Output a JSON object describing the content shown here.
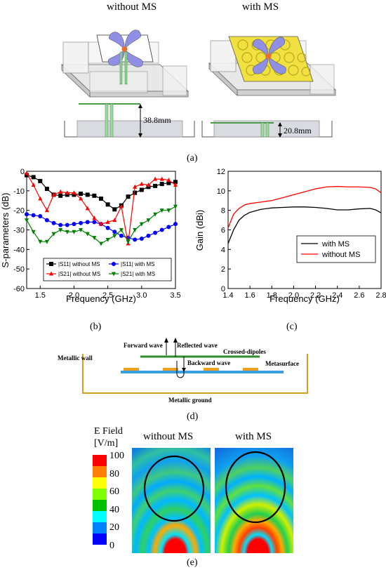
{
  "panel_a": {
    "label": "(a)",
    "left_title": "without MS",
    "right_title": "with MS",
    "left_height": "38.8mm",
    "right_height": "20.8mm"
  },
  "panel_b_label": "(b)",
  "panel_c_label": "(c)",
  "panel_d": {
    "label": "(d)",
    "forward": "Forward wave",
    "reflected": "Reflected wave",
    "crossed": "Crossed-dipoles",
    "backward": "Backward wave",
    "wall": "Metallic wall",
    "metasurface": "Metasurface",
    "ground": "Metallic ground"
  },
  "panel_e": {
    "label": "(e)",
    "efield_title_1": "E Field",
    "efield_title_2": "[V/m]",
    "left_title": "without MS",
    "right_title": "with MS",
    "scale_ticks": [
      "100",
      "80",
      "60",
      "40",
      "20",
      "0"
    ],
    "scale_colors": [
      "#ff0000",
      "#ff8000",
      "#ffff00",
      "#80ff00",
      "#00c000",
      "#00ffff",
      "#0080ff",
      "#0000ff"
    ]
  },
  "chart_data": [
    {
      "type": "line",
      "xlabel": "Frequency (GHz)",
      "ylabel": "S-parameters (dB)",
      "xlim": [
        1.3,
        3.5
      ],
      "ylim": [
        -60,
        0
      ],
      "xticks": [
        "1.5",
        "2.0",
        "2.5",
        "3.0",
        "3.5"
      ],
      "yticks": [
        "0",
        "-10",
        "-20",
        "-30",
        "-40",
        "-50",
        "-60"
      ],
      "legend": "bottom",
      "series": [
        {
          "name": "|S11| without MS",
          "color": "#000000",
          "marker": "square",
          "x": [
            1.3,
            1.4,
            1.5,
            1.6,
            1.7,
            1.8,
            1.9,
            2.0,
            2.1,
            2.2,
            2.3,
            2.4,
            2.5,
            2.6,
            2.7,
            2.8,
            2.9,
            3.0,
            3.1,
            3.2,
            3.3,
            3.4,
            3.5
          ],
          "y": [
            -2,
            -3,
            -5,
            -9,
            -12,
            -12.5,
            -12,
            -12,
            -11.5,
            -12,
            -12.5,
            -14,
            -17,
            -19.5,
            -17.5,
            -13,
            -11,
            -9.5,
            -8,
            -7.5,
            -6.5,
            -6,
            -5.5
          ]
        },
        {
          "name": "|S11| with MS",
          "color": "#0000ff",
          "marker": "circle",
          "x": [
            1.3,
            1.4,
            1.5,
            1.6,
            1.7,
            1.8,
            1.9,
            2.0,
            2.1,
            2.2,
            2.3,
            2.4,
            2.5,
            2.6,
            2.7,
            2.8,
            2.9,
            3.0,
            3.1,
            3.2,
            3.3,
            3.4,
            3.5
          ],
          "y": [
            -22,
            -22.5,
            -23,
            -25,
            -26.5,
            -27.5,
            -27.5,
            -27,
            -26.5,
            -26,
            -26,
            -27,
            -29,
            -31,
            -33,
            -34,
            -35,
            -34.5,
            -33,
            -31.5,
            -30,
            -28.5,
            -27
          ]
        },
        {
          "name": "|S21| without MS",
          "color": "#ff0000",
          "marker": "triangle-up",
          "x": [
            1.3,
            1.4,
            1.5,
            1.6,
            1.7,
            1.8,
            1.9,
            2.0,
            2.1,
            2.2,
            2.3,
            2.4,
            2.5,
            2.6,
            2.7,
            2.8,
            2.9,
            3.0,
            3.1,
            3.2,
            3.3,
            3.4,
            3.5
          ],
          "y": [
            -1,
            -7,
            -14,
            -20,
            -12,
            -10.5,
            -11,
            -11,
            -14,
            -19,
            -24,
            -27,
            -26,
            -25,
            -18,
            -37,
            -8,
            -6.5,
            -7,
            -4,
            -4,
            -4.5,
            -7
          ]
        },
        {
          "name": "|S21| with MS",
          "color": "#008000",
          "marker": "triangle-down",
          "x": [
            1.3,
            1.4,
            1.5,
            1.6,
            1.7,
            1.8,
            1.9,
            2.0,
            2.1,
            2.2,
            2.3,
            2.4,
            2.5,
            2.6,
            2.7,
            2.8,
            2.9,
            3.0,
            3.1,
            3.2,
            3.3,
            3.4,
            3.5
          ],
          "y": [
            -25,
            -31,
            -36,
            -36,
            -32,
            -30,
            -31,
            -31,
            -30,
            -32,
            -34,
            -37,
            -35,
            -33,
            -30,
            -36,
            -30,
            -27,
            -25,
            -22,
            -20,
            -20,
            -18
          ]
        }
      ]
    },
    {
      "type": "line",
      "xlabel": "Frequency (GHz)",
      "ylabel": "Gain (dBi)",
      "xlim": [
        1.4,
        2.8
      ],
      "ylim": [
        0,
        12
      ],
      "xticks": [
        "1.4",
        "1.6",
        "1.8",
        "2.0",
        "2.2",
        "2.4",
        "2.6",
        "2.8"
      ],
      "yticks": [
        "0",
        "2",
        "4",
        "6",
        "8",
        "10",
        "12"
      ],
      "legend": "center-right",
      "series": [
        {
          "name": "with MS",
          "color": "#000000",
          "x": [
            1.4,
            1.45,
            1.5,
            1.55,
            1.6,
            1.7,
            1.8,
            1.9,
            2.0,
            2.1,
            2.2,
            2.3,
            2.4,
            2.5,
            2.6,
            2.7,
            2.75,
            2.8
          ],
          "y": [
            4.6,
            6.0,
            7.0,
            7.5,
            7.8,
            8.1,
            8.25,
            8.3,
            8.35,
            8.35,
            8.3,
            8.2,
            8.05,
            8.05,
            8.15,
            8.2,
            8.05,
            7.75
          ]
        },
        {
          "name": "without MS",
          "color": "#ff0000",
          "x": [
            1.4,
            1.45,
            1.5,
            1.55,
            1.6,
            1.7,
            1.8,
            1.9,
            2.0,
            2.1,
            2.2,
            2.3,
            2.4,
            2.5,
            2.6,
            2.7,
            2.75,
            2.8
          ],
          "y": [
            6.2,
            7.6,
            8.2,
            8.55,
            8.7,
            8.85,
            9.0,
            9.3,
            9.6,
            9.9,
            10.2,
            10.4,
            10.45,
            10.4,
            10.4,
            10.35,
            10.2,
            9.8
          ]
        }
      ]
    }
  ]
}
